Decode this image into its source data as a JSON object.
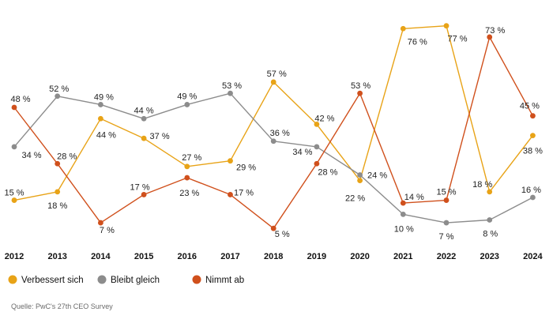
{
  "chart_data": {
    "type": "line",
    "title": "",
    "xlabel": "",
    "ylabel": "",
    "ylim": [
      0,
      80
    ],
    "grid": false,
    "legend_position": "bottom-left",
    "categories": [
      "2012",
      "2013",
      "2014",
      "2015",
      "2016",
      "2017",
      "2018",
      "2019",
      "2020",
      "2021",
      "2022",
      "2023",
      "2024"
    ],
    "series": [
      {
        "name": "Verbessert sich",
        "color": "#e8a317",
        "values": [
          15,
          18,
          44,
          37,
          27,
          29,
          57,
          42,
          22,
          76,
          77,
          18,
          38
        ],
        "labels": [
          "15 %",
          "18 %",
          "44 %",
          "37 %",
          "27 %",
          "29 %",
          "57 %",
          "42 %",
          "22 %",
          "76 %",
          "77 %",
          "18 %",
          "38 %"
        ]
      },
      {
        "name": "Bleibt gleich",
        "color": "#8c8c8c",
        "values": [
          34,
          52,
          49,
          44,
          49,
          53,
          36,
          34,
          24,
          10,
          7,
          8,
          16
        ],
        "labels": [
          "34 %",
          "52 %",
          "49 %",
          "44 %",
          "49 %",
          "53 %",
          "36 %",
          "34 %",
          "24 %",
          "10 %",
          "7 %",
          "8 %",
          "16 %"
        ]
      },
      {
        "name": "Nimmt ab",
        "color": "#d0501c",
        "values": [
          48,
          28,
          7,
          17,
          23,
          17,
          5,
          28,
          53,
          14,
          15,
          73,
          45
        ],
        "labels": [
          "48 %",
          "28 %",
          "7 %",
          "17 %",
          "23 %",
          "17 %",
          "5 %",
          "28 %",
          "53 %",
          "14 %",
          "15 %",
          "73 %",
          "45 %"
        ]
      }
    ]
  },
  "source": "Quelle: PwC's 27th CEO Survey"
}
